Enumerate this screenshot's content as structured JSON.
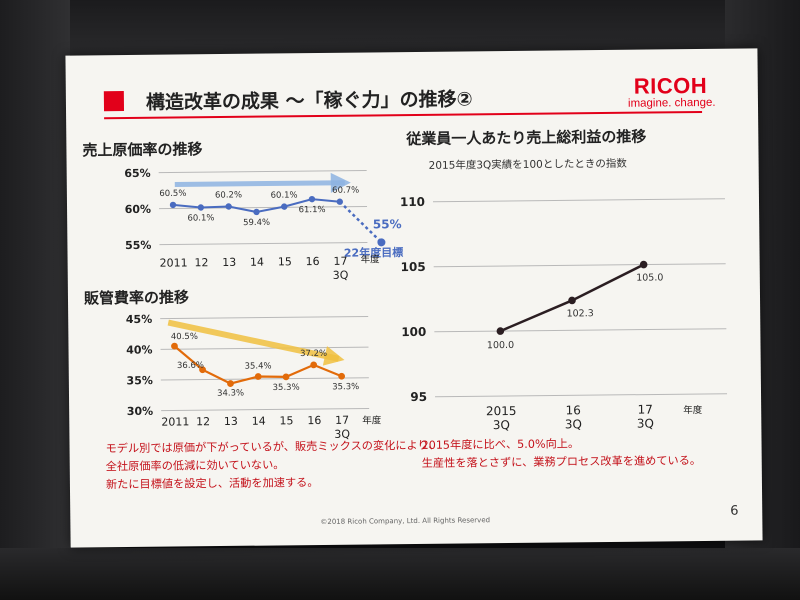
{
  "slide": {
    "title": "構造改革の成果 ～「稼ぐ力」の推移②",
    "logo": {
      "name": "RICOH",
      "tagline": "imagine. change."
    },
    "footer": "©2018 Ricoh Company, Ltd. All Rights Reserved",
    "page_number": "6",
    "left_notes": [
      "モデル別では原価が下がっているが、販売ミックスの変化により、",
      "全社原価率の低減に効いていない。",
      "新たに目標値を設定し、活動を加速する。"
    ],
    "right_notes": [
      "2015年度に比べ、5.0%向上。",
      "生産性を落とさずに、業務プロセス改革を進めている。"
    ]
  },
  "colors": {
    "accent": "#e2001a",
    "cost_line": "#4a6cc0",
    "sga_line": "#e26b0a",
    "index_line": "#2b1e22"
  },
  "chart_data": [
    {
      "type": "line",
      "title": "売上原価率の推移",
      "categories": [
        "2011",
        "12",
        "13",
        "14",
        "15",
        "16",
        "17"
      ],
      "category_sub": [
        "",
        "",
        "",
        "",
        "",
        "",
        "3Q"
      ],
      "xunit": "年度",
      "values": [
        60.5,
        60.1,
        60.2,
        59.4,
        60.1,
        61.1,
        60.7
      ],
      "labels": [
        "60.5%",
        "60.1%",
        "60.2%",
        "59.4%",
        "60.1%",
        "61.1%",
        "60.7%"
      ],
      "yticks": [
        "65%",
        "60%",
        "55%"
      ],
      "ylim": [
        55,
        65
      ],
      "target": {
        "value": 55,
        "label": "55%",
        "caption": "22年度目標"
      }
    },
    {
      "type": "line",
      "title": "販管費率の推移",
      "categories": [
        "2011",
        "12",
        "13",
        "14",
        "15",
        "16",
        "17"
      ],
      "category_sub": [
        "",
        "",
        "",
        "",
        "",
        "",
        "3Q"
      ],
      "xunit": "年度",
      "values": [
        40.5,
        36.6,
        34.3,
        35.4,
        35.3,
        37.2,
        35.3
      ],
      "labels": [
        "40.5%",
        "36.6%",
        "34.3%",
        "35.4%",
        "35.3%",
        "37.2%",
        "35.3%"
      ],
      "yticks": [
        "45%",
        "40%",
        "35%",
        "30%"
      ],
      "ylim": [
        30,
        45
      ]
    },
    {
      "type": "line",
      "title": "従業員一人あたり売上総利益の推移",
      "subtitle": "2015年度3Q実績を100としたときの指数",
      "categories": [
        "2015",
        "16",
        "17"
      ],
      "category_sub": [
        "3Q",
        "3Q",
        "3Q"
      ],
      "xunit": "年度",
      "values": [
        100.0,
        102.3,
        105.0
      ],
      "labels": [
        "100.0",
        "102.3",
        "105.0"
      ],
      "yticks": [
        "110",
        "105",
        "100",
        "95"
      ],
      "ylim": [
        95,
        110
      ]
    }
  ]
}
